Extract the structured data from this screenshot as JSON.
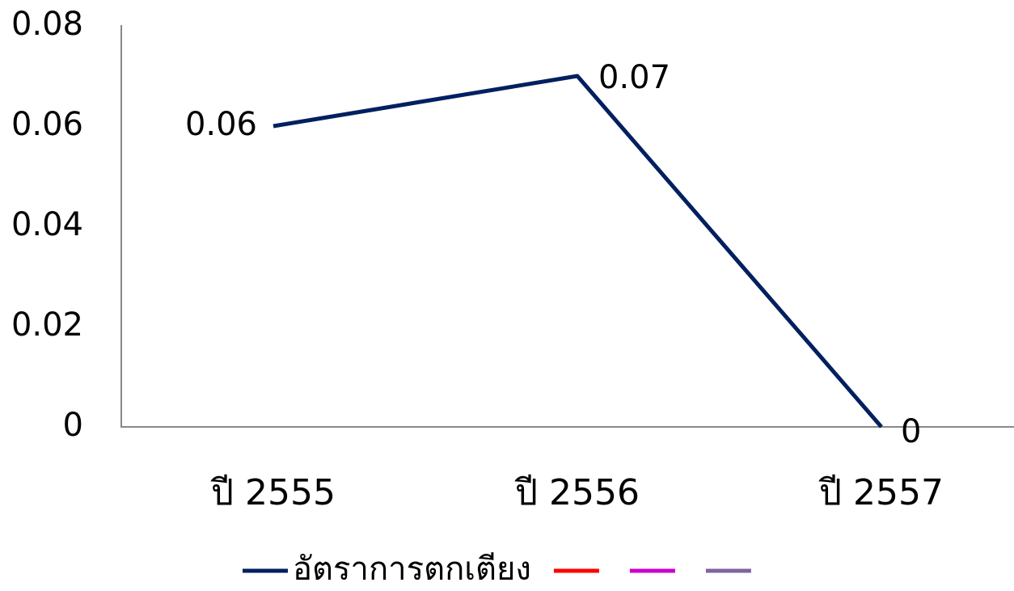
{
  "chart_data": {
    "type": "line",
    "categories": [
      "ปี 2555",
      "ปี 2556",
      "ปี 2557"
    ],
    "series": [
      {
        "name": "อัตราการตกเตียง",
        "color": "#002060",
        "values": [
          0.06,
          0.07,
          0
        ]
      },
      {
        "color": "#ff0000",
        "values": [
          null,
          null,
          null
        ]
      },
      {
        "color": "#cc00cc",
        "values": [
          null,
          null,
          null
        ]
      },
      {
        "color": "#8064a2",
        "values": [
          null,
          null,
          null
        ]
      }
    ],
    "ylim": [
      0,
      0.08
    ],
    "yticks": [
      0,
      0.02,
      0.04,
      0.06,
      0.08
    ],
    "grid": false,
    "legend": "bottom"
  }
}
